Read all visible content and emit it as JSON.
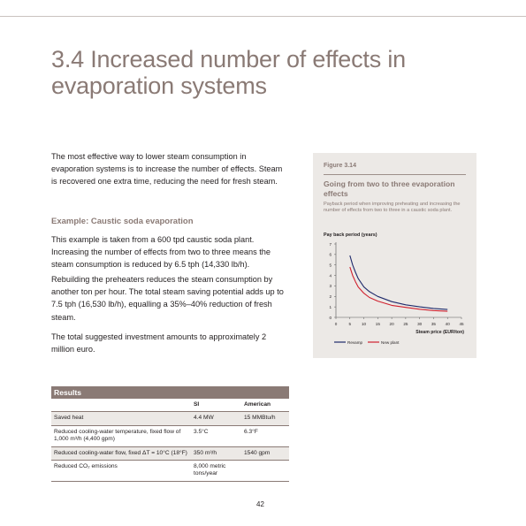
{
  "page": {
    "title": "3.4 Increased number of effects in evaporation systems",
    "paragraph1": "The most effective way to lower steam consumption in evaporation systems is to increase the number of effects. Steam is recovered one extra time, reducing the need for fresh steam.",
    "subheading": "Example: Caustic soda evaporation",
    "paragraph2": "This example is taken from a 600 tpd caustic soda plant. Increasing the number of effects from two to three means the steam consumption is reduced by 6.5 tph (14,330 lb/h).",
    "paragraph3": "Rebuilding the preheaters reduces the steam consumption by another ton per hour. The total steam saving potential adds up to 7.5 tph (16,530 lb/h), equalling a 35%–40% reduction of fresh steam.",
    "paragraph4": "The total suggested investment amounts to approximately 2 million euro.",
    "page_number": "42"
  },
  "figure": {
    "number": "Figure 3.14",
    "title": "Going from two to three evaporation effects",
    "subtitle": "Payback period when improving preheating and increasing the number of effects from two to three in a caustic soda plant."
  },
  "chart_data": {
    "type": "line",
    "ylabel": "Pay back period (years)",
    "xlabel": "Steam price (EUR/ton)",
    "xlim": [
      0,
      45
    ],
    "ylim": [
      0,
      7
    ],
    "x_ticks": [
      "0",
      "5",
      "10",
      "15",
      "20",
      "25",
      "30",
      "35",
      "40",
      "45"
    ],
    "y_ticks": [
      "0",
      "1",
      "2",
      "3",
      "4",
      "5",
      "6",
      "7"
    ],
    "legend_position": "bottom",
    "series": [
      {
        "name": "Revamp",
        "color": "#1f2a6b",
        "x": [
          5,
          6,
          7,
          8,
          10,
          12,
          15,
          20,
          25,
          30,
          35,
          40
        ],
        "y": [
          5.9,
          5.0,
          4.3,
          3.7,
          2.9,
          2.45,
          2.0,
          1.5,
          1.2,
          1.0,
          0.85,
          0.75
        ]
      },
      {
        "name": "New plant",
        "color": "#d0202e",
        "x": [
          5,
          6,
          7,
          8,
          10,
          12,
          15,
          20,
          25,
          30,
          35,
          40
        ],
        "y": [
          4.8,
          4.0,
          3.4,
          2.9,
          2.3,
          1.9,
          1.55,
          1.15,
          0.95,
          0.78,
          0.65,
          0.58
        ]
      }
    ]
  },
  "table": {
    "title": "Results",
    "headers": [
      "",
      "SI",
      "American"
    ],
    "rows": [
      {
        "label": "Saved heat",
        "si": "4.4 MW",
        "us": "15 MMBtu/h",
        "shaded": true
      },
      {
        "label": "Reduced cooling-water temperature, fixed flow of 1,000 m³/h (4,400 gpm)",
        "si": "3.5°C",
        "us": "6.3°F",
        "shaded": false
      },
      {
        "label": "Reduced cooling-water flow, fixed ΔT = 10°C (18°F)",
        "si": "350 m³/h",
        "us": "1540 gpm",
        "shaded": true
      },
      {
        "label": "Reduced CO₂ emissions",
        "si": "8,000 metric tons/year",
        "us": "",
        "shaded": false
      }
    ]
  }
}
